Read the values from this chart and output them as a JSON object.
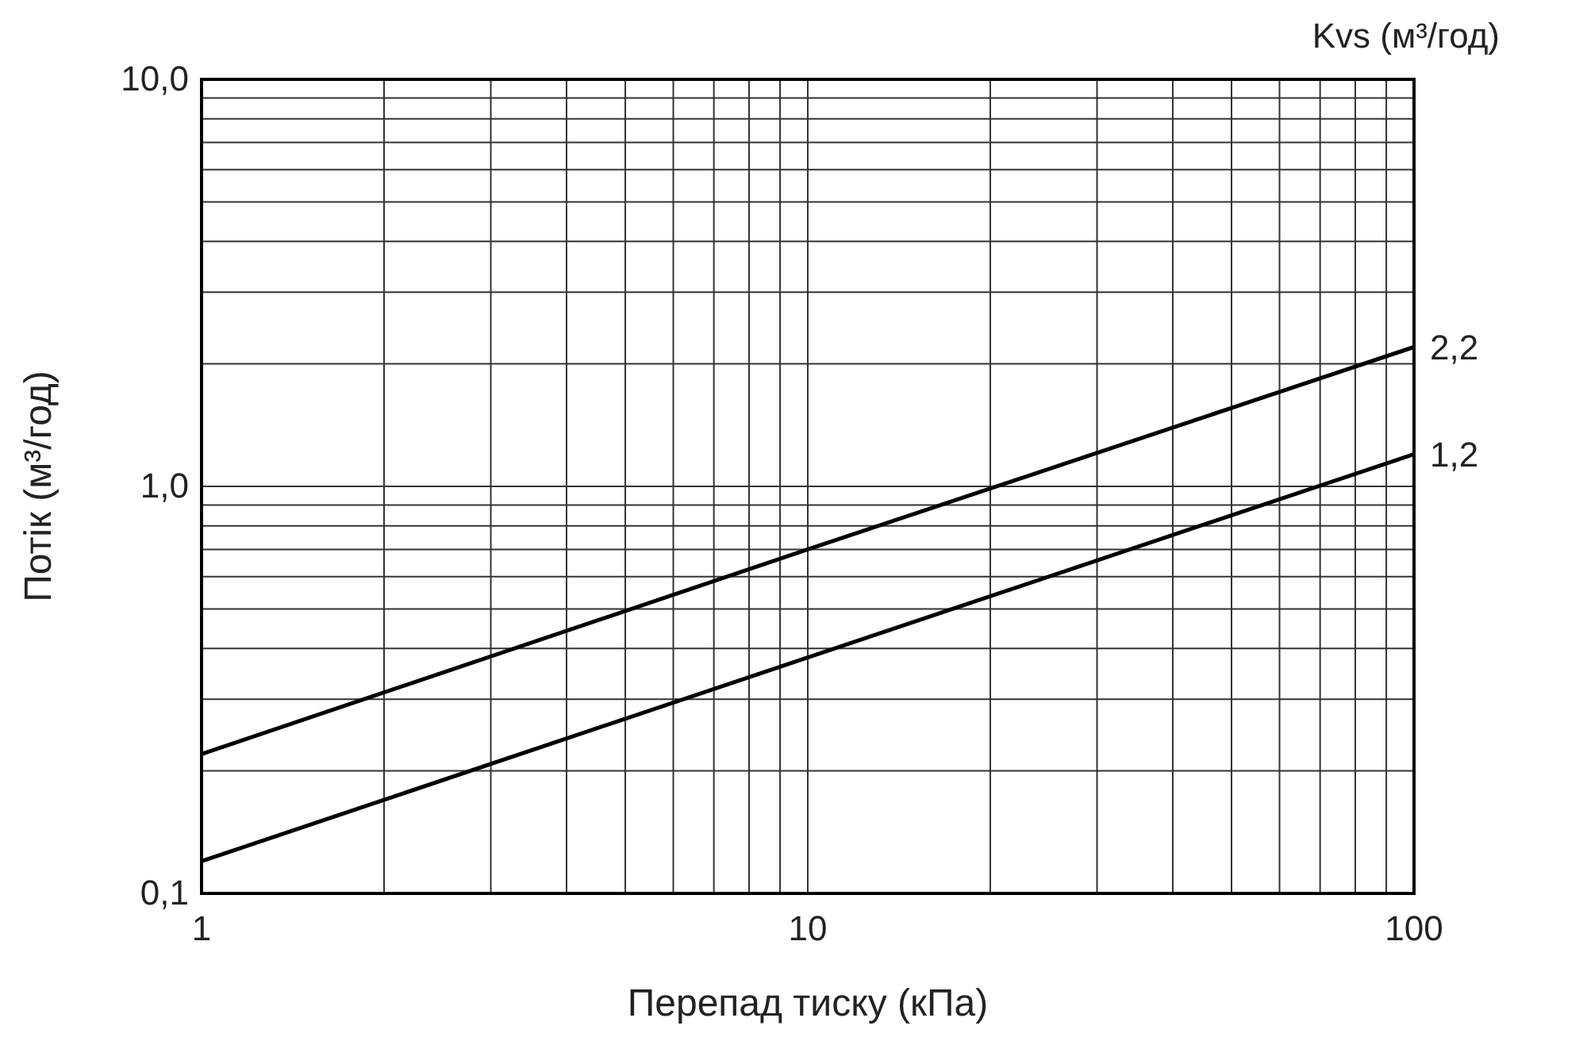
{
  "chart_data": {
    "type": "line",
    "xlabel": "Перепад тиску (кПа)",
    "ylabel": "Потік (м³/год)",
    "legend_title": "Kvs (м³/год)",
    "log": "xy",
    "grid": true,
    "legend": false,
    "marker": "none",
    "line_style": "solid",
    "xlim": [
      1,
      100
    ],
    "ylim": [
      0.1,
      10
    ],
    "xticks": [
      {
        "value": 1,
        "label": "1"
      },
      {
        "value": 2,
        "label": null
      },
      {
        "value": 3,
        "label": null
      },
      {
        "value": 4,
        "label": null
      },
      {
        "value": 5,
        "label": null
      },
      {
        "value": 6,
        "label": null
      },
      {
        "value": 7,
        "label": null
      },
      {
        "value": 8,
        "label": null
      },
      {
        "value": 9,
        "label": null
      },
      {
        "value": 10,
        "label": "10"
      },
      {
        "value": 20,
        "label": null
      },
      {
        "value": 30,
        "label": null
      },
      {
        "value": 40,
        "label": null
      },
      {
        "value": 50,
        "label": null
      },
      {
        "value": 60,
        "label": null
      },
      {
        "value": 70,
        "label": null
      },
      {
        "value": 80,
        "label": null
      },
      {
        "value": 90,
        "label": null
      },
      {
        "value": 100,
        "label": "100"
      }
    ],
    "yticks": [
      {
        "value": 0.1,
        "label": "0,1"
      },
      {
        "value": 0.2,
        "label": null
      },
      {
        "value": 0.3,
        "label": null
      },
      {
        "value": 0.4,
        "label": null
      },
      {
        "value": 0.5,
        "label": null
      },
      {
        "value": 0.6,
        "label": null
      },
      {
        "value": 0.7,
        "label": null
      },
      {
        "value": 0.8,
        "label": null
      },
      {
        "value": 0.9,
        "label": null
      },
      {
        "value": 1,
        "label": "1,0"
      },
      {
        "value": 2,
        "label": null
      },
      {
        "value": 3,
        "label": null
      },
      {
        "value": 4,
        "label": null
      },
      {
        "value": 5,
        "label": null
      },
      {
        "value": 6,
        "label": null
      },
      {
        "value": 7,
        "label": null
      },
      {
        "value": 8,
        "label": null
      },
      {
        "value": 9,
        "label": null
      },
      {
        "value": 10,
        "label": "10,0"
      }
    ],
    "x": [
      1,
      10,
      100
    ],
    "series": [
      {
        "name": "2,2",
        "color": "#000000",
        "values": [
          0.22,
          0.7,
          2.2
        ]
      },
      {
        "name": "1,2",
        "color": "#000000",
        "values": [
          0.12,
          0.38,
          1.2
        ]
      }
    ]
  }
}
